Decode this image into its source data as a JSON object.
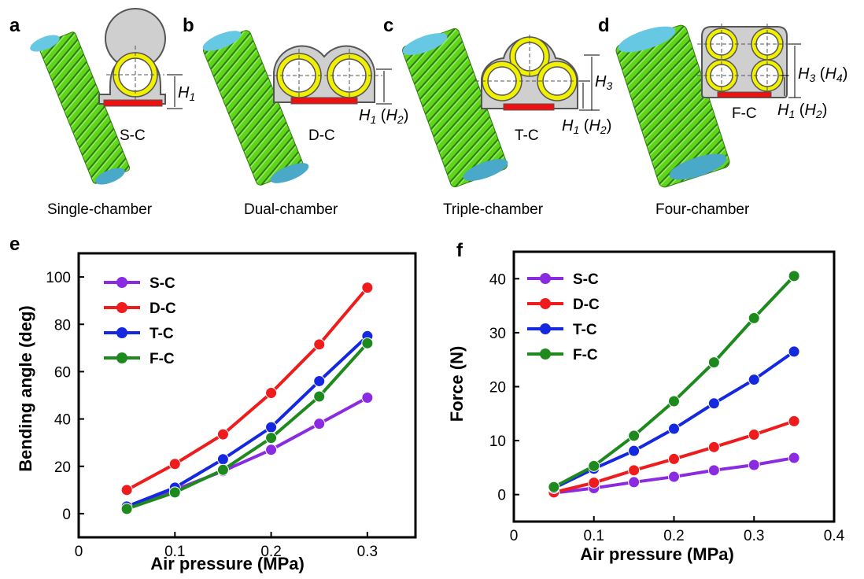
{
  "panels": {
    "a": {
      "letter": "a",
      "caption": "Single-chamber",
      "tag": "S-C",
      "h1": "H",
      "h1_sub": "1"
    },
    "b": {
      "letter": "b",
      "caption": "Dual-chamber",
      "tag": "D-C",
      "h_label": "H",
      "h_sub1": "1",
      "h_paren": "H",
      "h_sub2": "2"
    },
    "c": {
      "letter": "c",
      "caption": "Triple-chamber",
      "tag": "T-C",
      "h3": "H",
      "h3_sub": "3",
      "h_label": "H",
      "h_sub1": "1",
      "h_paren": "H",
      "h_sub2": "2"
    },
    "d": {
      "letter": "d",
      "caption": "Four-chamber",
      "tag": "F-C",
      "h3": "H",
      "h3_sub": "3",
      "h4": "H",
      "h4_sub": "4",
      "h_label": "H",
      "h_sub1": "1",
      "h_paren": "H",
      "h_sub2": "2"
    }
  },
  "colors": {
    "S-C": "#8a2be2",
    "D-C": "#ee1c1c",
    "T-C": "#1428e0",
    "F-C": "#1e8a1e",
    "body_green": "#5fd51a",
    "cap_blue": "#67c8e4",
    "chamber_yellow": "#f0f000",
    "base_red": "#ee1111",
    "cross_gray": "#c8c8c8"
  },
  "chart_data": [
    {
      "panel": "e",
      "type": "line",
      "xlabel": "Air pressure (MPa)",
      "ylabel": "Bending angle (deg)",
      "xlim": [
        0,
        0.35
      ],
      "ylim": [
        -10,
        110
      ],
      "xticks": [
        0,
        0.1,
        0.2,
        0.3
      ],
      "xtick_labels": [
        "0",
        "0.1",
        "0.2",
        "0.3"
      ],
      "yticks": [
        0,
        20,
        40,
        60,
        80,
        100
      ],
      "ytick_labels": [
        "0",
        "20",
        "40",
        "60",
        "80",
        "100"
      ],
      "legend": "top-left",
      "x": [
        0.05,
        0.1,
        0.15,
        0.2,
        0.25,
        0.3
      ],
      "series": [
        {
          "name": "S-C",
          "values": [
            3,
            10,
            18,
            27,
            38,
            49
          ]
        },
        {
          "name": "D-C",
          "values": [
            10,
            21,
            33.5,
            51,
            71.5,
            95.5
          ]
        },
        {
          "name": "T-C",
          "values": [
            3,
            11,
            23,
            36.5,
            56,
            75
          ]
        },
        {
          "name": "F-C",
          "values": [
            2,
            9,
            18.5,
            32,
            49.5,
            72
          ]
        }
      ]
    },
    {
      "panel": "f",
      "type": "line",
      "xlabel": "Air pressure (MPa)",
      "ylabel": "Force (N)",
      "xlim": [
        0,
        0.4
      ],
      "ylim": [
        -5,
        45
      ],
      "xticks": [
        0,
        0.1,
        0.2,
        0.3,
        0.4
      ],
      "xtick_labels": [
        "0",
        "0.1",
        "0.2",
        "0.3",
        "0.4"
      ],
      "yticks": [
        0,
        10,
        20,
        30,
        40
      ],
      "ytick_labels": [
        "0",
        "10",
        "20",
        "30",
        "40"
      ],
      "legend": "top-left",
      "x": [
        0.05,
        0.1,
        0.15,
        0.2,
        0.25,
        0.3,
        0.35
      ],
      "series": [
        {
          "name": "S-C",
          "values": [
            0.3,
            1.2,
            2.3,
            3.3,
            4.5,
            5.5,
            6.8
          ]
        },
        {
          "name": "D-C",
          "values": [
            0.4,
            2.2,
            4.5,
            6.6,
            8.8,
            11.1,
            13.6
          ]
        },
        {
          "name": "T-C",
          "values": [
            1.2,
            4.8,
            8.1,
            12.2,
            16.9,
            21.3,
            26.5
          ]
        },
        {
          "name": "F-C",
          "values": [
            1.4,
            5.3,
            10.9,
            17.3,
            24.5,
            32.7,
            40.5
          ]
        }
      ]
    }
  ]
}
